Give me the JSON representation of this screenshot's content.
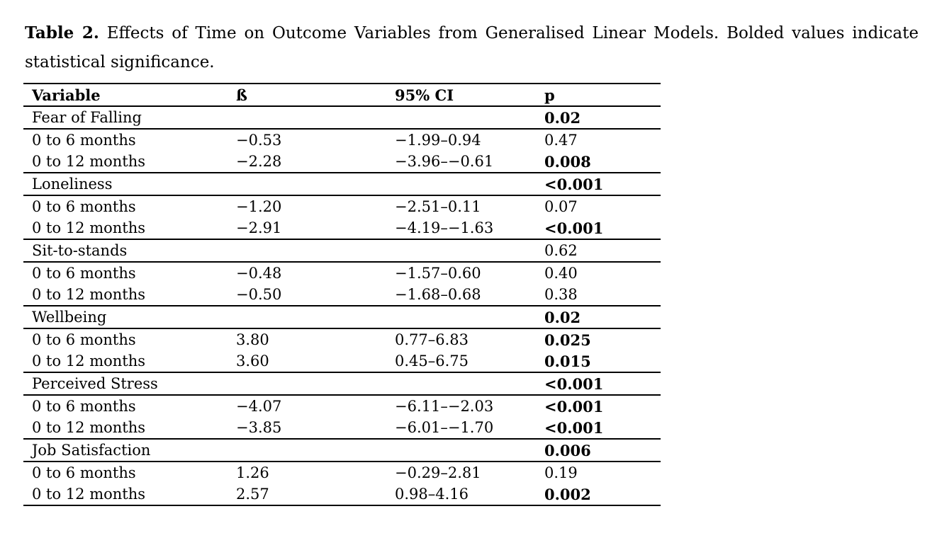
{
  "caption": {
    "label": "Table 2.",
    "line1": "Effects of Time on Outcome Variables from Generalised Linear Models. Bolded values indicate",
    "line2": "statistical significance."
  },
  "colors": {
    "text": "#000000",
    "background": "#ffffff",
    "rule": "#000000"
  },
  "table": {
    "columns": {
      "variable": "Variable",
      "beta": "ß",
      "ci": "95% CI",
      "p": "p"
    },
    "groups": [
      {
        "name": "Fear of Falling",
        "p": "0.02",
        "p_bold": true,
        "rows": [
          {
            "variable": "0 to 6 months",
            "beta": "−0.53",
            "ci": "−1.99–0.94",
            "p": "0.47",
            "p_bold": false
          },
          {
            "variable": "0 to 12 months",
            "beta": "−2.28",
            "ci": "−3.96–−0.61",
            "p": "0.008",
            "p_bold": true
          }
        ]
      },
      {
        "name": "Loneliness",
        "p": "<0.001",
        "p_bold": true,
        "rows": [
          {
            "variable": "0 to 6 months",
            "beta": "−1.20",
            "ci": "−2.51–0.11",
            "p": "0.07",
            "p_bold": false
          },
          {
            "variable": "0 to 12 months",
            "beta": "−2.91",
            "ci": "−4.19–−1.63",
            "p": "<0.001",
            "p_bold": true
          }
        ]
      },
      {
        "name": "Sit-to-stands",
        "p": "0.62",
        "p_bold": false,
        "rows": [
          {
            "variable": "0 to 6 months",
            "beta": "−0.48",
            "ci": "−1.57–0.60",
            "p": "0.40",
            "p_bold": false
          },
          {
            "variable": "0 to 12 months",
            "beta": "−0.50",
            "ci": "−1.68–0.68",
            "p": "0.38",
            "p_bold": false
          }
        ]
      },
      {
        "name": "Wellbeing",
        "p": "0.02",
        "p_bold": true,
        "rows": [
          {
            "variable": "0 to 6 months",
            "beta": "3.80",
            "ci": "0.77–6.83",
            "p": "0.025",
            "p_bold": true
          },
          {
            "variable": "0 to 12 months",
            "beta": "3.60",
            "ci": "0.45–6.75",
            "p": "0.015",
            "p_bold": true
          }
        ]
      },
      {
        "name": "Perceived Stress",
        "p": "<0.001",
        "p_bold": true,
        "rows": [
          {
            "variable": "0 to 6 months",
            "beta": "−4.07",
            "ci": "−6.11–−2.03",
            "p": "<0.001",
            "p_bold": true
          },
          {
            "variable": "0 to 12 months",
            "beta": "−3.85",
            "ci": "−6.01–−1.70",
            "p": "<0.001",
            "p_bold": true
          }
        ]
      },
      {
        "name": "Job Satisfaction",
        "p": "0.006",
        "p_bold": true,
        "rows": [
          {
            "variable": "0 to 6 months",
            "beta": "1.26",
            "ci": "−0.29–2.81",
            "p": "0.19",
            "p_bold": false
          },
          {
            "variable": "0 to 12 months",
            "beta": "2.57",
            "ci": "0.98–4.16",
            "p": "0.002",
            "p_bold": true
          }
        ]
      }
    ]
  }
}
